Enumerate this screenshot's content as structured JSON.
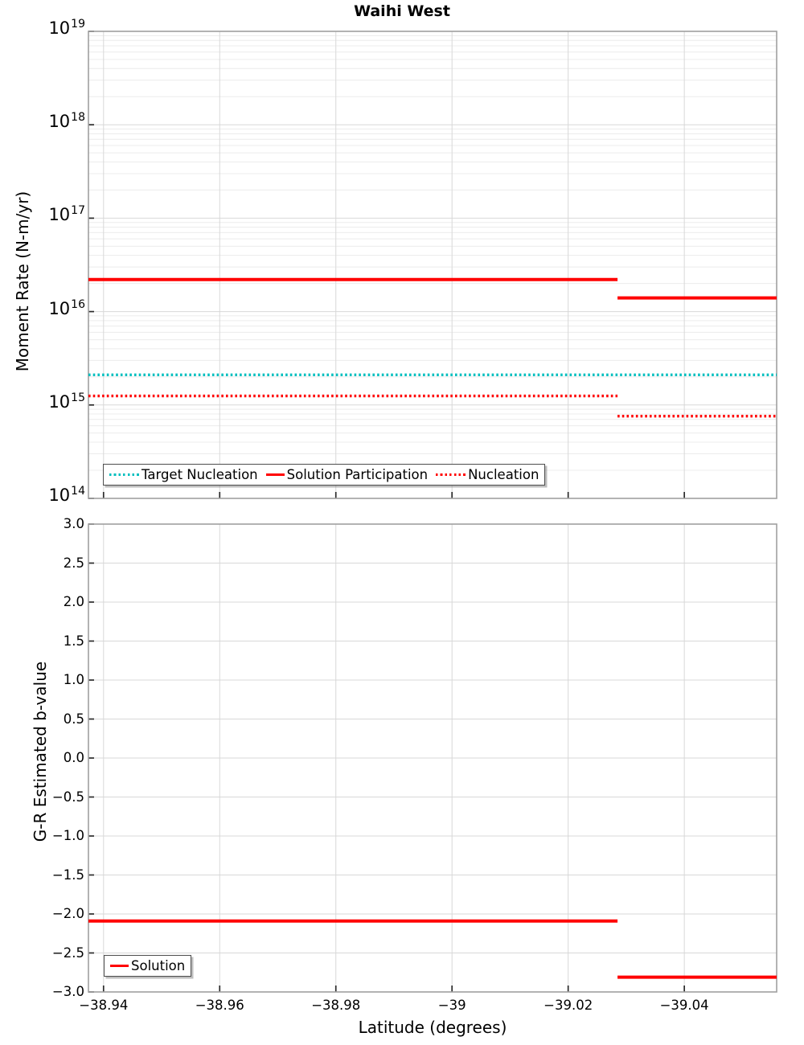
{
  "title": "Waihi West",
  "colors": {
    "red": "#ff0000",
    "teal": "#00bfbf",
    "grid_major": "#d8d8d8",
    "grid_minor": "#ececec",
    "panel_border": "#a0a0a0",
    "tick_mark": "#2b2b2b",
    "legend_border": "#4d4d4d"
  },
  "chart_data": [
    {
      "type": "line",
      "title": "Waihi West",
      "xlabel": "",
      "ylabel": "Moment Rate (N-m/yr)",
      "yscale": "log",
      "ylim": [
        100000000000000.0,
        1e+19
      ],
      "y_tick_exponents": [
        19,
        18,
        17,
        16,
        15,
        14
      ],
      "xlim": [
        -38.9374,
        -39.0559
      ],
      "x_ticks": [
        {
          "v": -38.94,
          "label": "−38.94"
        },
        {
          "v": -38.96,
          "label": "−38.96"
        },
        {
          "v": -38.98,
          "label": "−38.98"
        },
        {
          "v": -39.0,
          "label": "−39"
        },
        {
          "v": -39.02,
          "label": "−39.02"
        },
        {
          "v": -39.04,
          "label": "−39.04"
        }
      ],
      "x_tick_labels_visible": false,
      "grid": true,
      "legend_position": "lower left",
      "series": [
        {
          "name": "Target Nucleation",
          "color": "#00bfbf",
          "style": "dotted",
          "segments": [
            {
              "x": [
                -38.9374,
                -39.0559
              ],
              "y": 2100000000000000.0
            }
          ]
        },
        {
          "name": "Solution Participation",
          "color": "#ff0000",
          "style": "solid",
          "segments": [
            {
              "x": [
                -38.9374,
                -39.0285
              ],
              "y": 2.2e+16
            },
            {
              "x": [
                -39.0285,
                -39.0559
              ],
              "y": 1.4e+16
            }
          ]
        },
        {
          "name": "Nucleation",
          "color": "#ff0000",
          "style": "dotted",
          "segments": [
            {
              "x": [
                -38.9374,
                -39.0285
              ],
              "y": 1250000000000000.0
            },
            {
              "x": [
                -39.0285,
                -39.0559
              ],
              "y": 760000000000000.0
            }
          ]
        }
      ]
    },
    {
      "type": "line",
      "title": "",
      "xlabel": "Latitude (degrees)",
      "ylabel": "G-R Estimated b-value",
      "yscale": "linear",
      "ylim": [
        -3.0,
        3.0
      ],
      "y_ticks": [
        {
          "v": 3.0,
          "label": "3.0"
        },
        {
          "v": 2.5,
          "label": "2.5"
        },
        {
          "v": 2.0,
          "label": "2.0"
        },
        {
          "v": 1.5,
          "label": "1.5"
        },
        {
          "v": 1.0,
          "label": "1.0"
        },
        {
          "v": 0.5,
          "label": "0.5"
        },
        {
          "v": 0.0,
          "label": "0.0"
        },
        {
          "v": -0.5,
          "label": "−0.5"
        },
        {
          "v": -1.0,
          "label": "−1.0"
        },
        {
          "v": -1.5,
          "label": "−1.5"
        },
        {
          "v": -2.0,
          "label": "−2.0"
        },
        {
          "v": -2.5,
          "label": "−2.5"
        },
        {
          "v": -3.0,
          "label": "−3.0"
        }
      ],
      "xlim": [
        -38.9374,
        -39.0559
      ],
      "x_ticks": [
        {
          "v": -38.94,
          "label": "−38.94"
        },
        {
          "v": -38.96,
          "label": "−38.96"
        },
        {
          "v": -38.98,
          "label": "−38.98"
        },
        {
          "v": -39.0,
          "label": "−39"
        },
        {
          "v": -39.02,
          "label": "−39.02"
        },
        {
          "v": -39.04,
          "label": "−39.04"
        }
      ],
      "x_tick_labels_visible": true,
      "grid": true,
      "legend_position": "lower left",
      "series": [
        {
          "name": "Solution",
          "color": "#ff0000",
          "style": "solid",
          "segments": [
            {
              "x": [
                -38.9374,
                -39.0285
              ],
              "y": -2.09
            },
            {
              "x": [
                -39.0285,
                -39.0559
              ],
              "y": -2.81
            }
          ]
        }
      ]
    }
  ]
}
